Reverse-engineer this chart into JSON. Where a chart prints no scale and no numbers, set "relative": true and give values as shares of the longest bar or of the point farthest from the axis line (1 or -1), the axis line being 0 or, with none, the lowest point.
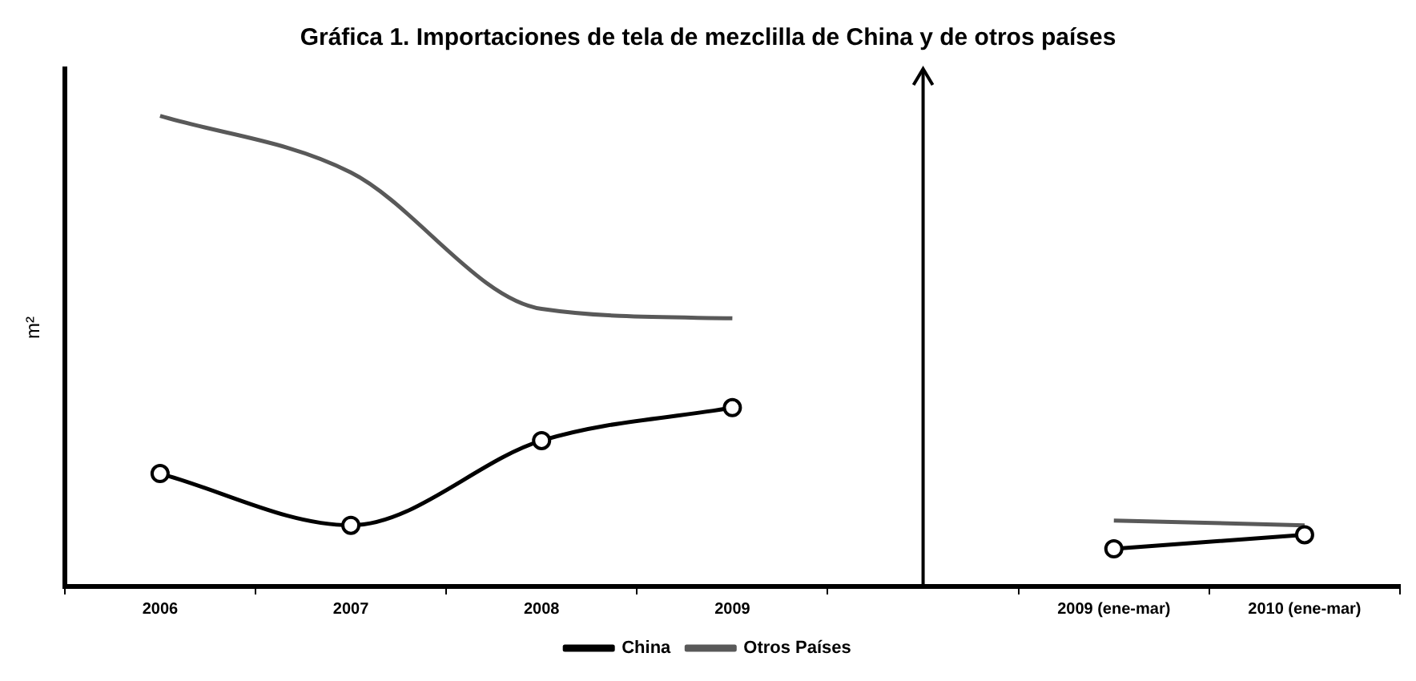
{
  "chart_data": {
    "type": "line",
    "title": "Gráfica 1. Importaciones de tela de mezclilla de China y de otros países",
    "ylabel": "m²",
    "relative": true,
    "legend": "bottom",
    "categories": [
      "2006",
      "2007",
      "2008",
      "2009",
      null,
      "2009 (ene-mar)",
      "2010 (ene-mar)"
    ],
    "series": [
      {
        "name": "China",
        "color": "#000000",
        "marker": "circle",
        "values": [
          0.24,
          0.13,
          0.31,
          0.38,
          null,
          0.08,
          0.11
        ]
      },
      {
        "name": "Otros Países",
        "color": "#595959",
        "marker": "none",
        "values": [
          1,
          0.88,
          0.59,
          0.57,
          null,
          0.14,
          0.13
        ]
      }
    ]
  }
}
